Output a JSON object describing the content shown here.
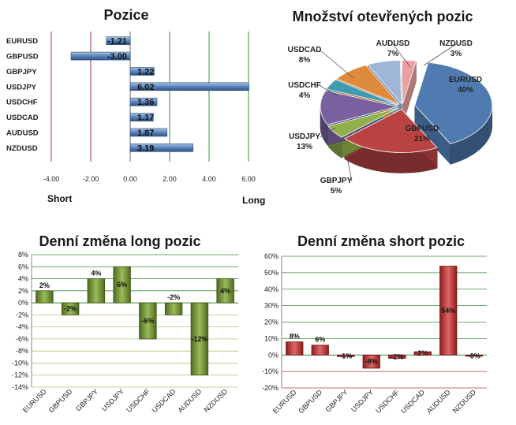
{
  "colors": {
    "bar_blue": "#5b84b8",
    "long_green": "#6e8a2e",
    "short_red": "#c0392b",
    "grid_green": "#3c8c3c",
    "grid_red": "#a03030",
    "label_bg_blue": "#dfe9f5"
  },
  "chart_data": [
    {
      "type": "bar",
      "orientation": "horizontal",
      "title": "Pozice",
      "categories": [
        "EURUSD",
        "GBPUSD",
        "GBPJPY",
        "USDJPY",
        "USDCHF",
        "USDCAD",
        "AUDUSD",
        "NZDUSD"
      ],
      "values": [
        -1.21,
        -3.0,
        1.22,
        6.02,
        1.36,
        1.17,
        1.87,
        3.19
      ],
      "value_labels": [
        "-1.21",
        "-3.00",
        "1.22",
        "6.02",
        "1.36",
        "1.17",
        "1.87",
        "3.19"
      ],
      "xlim": [
        -4,
        6
      ],
      "x_ticks": [
        "-4.00",
        "-2.00",
        "0.00",
        "2.00",
        "4.00",
        "6.00"
      ],
      "side_labels": {
        "short": "Short",
        "long": "Long"
      },
      "grid": true
    },
    {
      "type": "pie",
      "title": "Množství otevřených pozic",
      "slices": [
        {
          "label": "EURUSD",
          "percent": "40%",
          "value": 40,
          "color": "#4f7bb0"
        },
        {
          "label": "GBPUSD",
          "percent": "21%",
          "value": 21,
          "color": "#b94343"
        },
        {
          "label": "GBPJPY",
          "percent": "5%",
          "value": 5,
          "color": "#8fb04a"
        },
        {
          "label": "USDJPY",
          "percent": "13%",
          "value": 13,
          "color": "#7a62a0"
        },
        {
          "label": "USDCHF",
          "percent": "4%",
          "value": 4,
          "color": "#3f9bb2"
        },
        {
          "label": "USDCAD",
          "percent": "8%",
          "value": 8,
          "color": "#de8a3b"
        },
        {
          "label": "AUDUSD",
          "percent": "7%",
          "value": 7,
          "color": "#9fb6d8"
        },
        {
          "label": "NZDUSD",
          "percent": "3%",
          "value": 3,
          "color": "#e8a0a0"
        }
      ]
    },
    {
      "type": "bar",
      "title": "Denní změna long pozic",
      "categories": [
        "EURUSD",
        "GBPUSD",
        "GBPJPY",
        "USDJPY",
        "USDCHF",
        "USDCAD",
        "AUDUSD",
        "NZDUSD"
      ],
      "values": [
        2,
        -2,
        4,
        6,
        -6,
        -2,
        -12,
        4
      ],
      "value_labels": [
        "2%",
        "-2%",
        "4%",
        "6%",
        "-6%",
        "-2%",
        "-12%",
        "4%"
      ],
      "ylim": [
        -14,
        8
      ],
      "y_ticks": [
        "8%",
        "6%",
        "4%",
        "2%",
        "0%",
        "-2%",
        "-4%",
        "-6%",
        "-8%",
        "-10%",
        "-12%",
        "-14%"
      ],
      "grid": true
    },
    {
      "type": "bar",
      "title": "Denní změna short pozic",
      "categories": [
        "EURUSD",
        "GBPUSD",
        "GBPJPY",
        "USDJPY",
        "USDCHF",
        "USDCAD",
        "AUDUSD",
        "NZDUSD"
      ],
      "values": [
        8,
        6,
        -1,
        -8,
        -2,
        2,
        54,
        -0.5
      ],
      "value_labels": [
        "8%",
        "6%",
        "-1%",
        "-8%",
        "-2%",
        "2%",
        "54%",
        "-0%"
      ],
      "ylim": [
        -20,
        60
      ],
      "y_ticks": [
        "60%",
        "50%",
        "40%",
        "30%",
        "20%",
        "10%",
        "0%",
        "-10%",
        "-20%"
      ],
      "grid": true
    }
  ]
}
